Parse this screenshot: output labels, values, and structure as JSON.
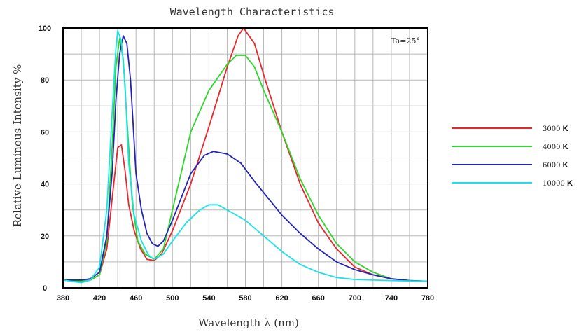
{
  "chart_data": {
    "type": "line",
    "title": "Wavelength Characteristics",
    "xlabel": "Wavelength  λ (nm)",
    "ylabel": "Relative Luminous Intensity %",
    "xlim": [
      380,
      780
    ],
    "ylim": [
      0,
      100
    ],
    "x_ticks": [
      380,
      420,
      460,
      500,
      540,
      580,
      620,
      660,
      700,
      740,
      780
    ],
    "y_ticks": [
      0,
      20,
      40,
      60,
      80,
      100
    ],
    "x_grid_step": 20,
    "y_grid_step": 10,
    "grid": true,
    "annotation": "Ta=25°",
    "legend_position": "right",
    "series": [
      {
        "name": "3000",
        "unit": "K",
        "color": "#e8262b",
        "points": [
          [
            380,
            3
          ],
          [
            400,
            2.5
          ],
          [
            410,
            3
          ],
          [
            420,
            5
          ],
          [
            428,
            15
          ],
          [
            435,
            38
          ],
          [
            440,
            54
          ],
          [
            444,
            55
          ],
          [
            448,
            45
          ],
          [
            452,
            32
          ],
          [
            458,
            22
          ],
          [
            465,
            15
          ],
          [
            472,
            11
          ],
          [
            480,
            10.5
          ],
          [
            488,
            13
          ],
          [
            500,
            22
          ],
          [
            520,
            40
          ],
          [
            540,
            62
          ],
          [
            560,
            85
          ],
          [
            572,
            97
          ],
          [
            578,
            100
          ],
          [
            590,
            94
          ],
          [
            600,
            82
          ],
          [
            620,
            60
          ],
          [
            640,
            40
          ],
          [
            660,
            25
          ],
          [
            680,
            15
          ],
          [
            700,
            8
          ],
          [
            720,
            5
          ],
          [
            740,
            3.5
          ],
          [
            760,
            2.8
          ],
          [
            780,
            2.5
          ]
        ]
      },
      {
        "name": "4000",
        "unit": "K",
        "color": "#2ed52a",
        "points": [
          [
            380,
            3
          ],
          [
            400,
            2.5
          ],
          [
            410,
            3
          ],
          [
            420,
            5
          ],
          [
            428,
            18
          ],
          [
            434,
            55
          ],
          [
            438,
            85
          ],
          [
            442,
            96
          ],
          [
            446,
            88
          ],
          [
            450,
            65
          ],
          [
            456,
            32
          ],
          [
            462,
            18
          ],
          [
            470,
            13
          ],
          [
            480,
            11
          ],
          [
            490,
            15
          ],
          [
            500,
            30
          ],
          [
            520,
            60
          ],
          [
            540,
            76
          ],
          [
            560,
            86
          ],
          [
            570,
            89.5
          ],
          [
            580,
            89.5
          ],
          [
            590,
            85
          ],
          [
            600,
            76
          ],
          [
            620,
            60
          ],
          [
            640,
            42
          ],
          [
            660,
            28
          ],
          [
            680,
            17
          ],
          [
            700,
            10
          ],
          [
            720,
            6
          ],
          [
            740,
            3.5
          ],
          [
            760,
            2.8
          ],
          [
            780,
            2.5
          ]
        ]
      },
      {
        "name": "6000",
        "unit": "K",
        "color": "#2424b4",
        "points": [
          [
            380,
            3
          ],
          [
            400,
            3
          ],
          [
            410,
            3.5
          ],
          [
            420,
            6
          ],
          [
            428,
            20
          ],
          [
            434,
            45
          ],
          [
            438,
            72
          ],
          [
            442,
            90
          ],
          [
            446,
            97
          ],
          [
            450,
            94
          ],
          [
            454,
            80
          ],
          [
            460,
            44
          ],
          [
            466,
            30
          ],
          [
            472,
            21
          ],
          [
            478,
            17
          ],
          [
            484,
            16
          ],
          [
            490,
            18
          ],
          [
            500,
            26
          ],
          [
            520,
            44
          ],
          [
            535,
            51
          ],
          [
            545,
            52.5
          ],
          [
            560,
            51.5
          ],
          [
            575,
            48
          ],
          [
            590,
            41
          ],
          [
            620,
            28
          ],
          [
            640,
            21
          ],
          [
            660,
            15
          ],
          [
            680,
            10
          ],
          [
            700,
            7
          ],
          [
            720,
            5
          ],
          [
            740,
            3.5
          ],
          [
            760,
            2.8
          ],
          [
            780,
            2.5
          ]
        ]
      },
      {
        "name": "10000",
        "unit": "K",
        "color": "#17e3ea",
        "points": [
          [
            380,
            3
          ],
          [
            400,
            2
          ],
          [
            410,
            3
          ],
          [
            420,
            8
          ],
          [
            428,
            30
          ],
          [
            434,
            68
          ],
          [
            438,
            92
          ],
          [
            440,
            99
          ],
          [
            444,
            95
          ],
          [
            448,
            78
          ],
          [
            452,
            48
          ],
          [
            458,
            28
          ],
          [
            466,
            18
          ],
          [
            474,
            12.5
          ],
          [
            480,
            11
          ],
          [
            490,
            13
          ],
          [
            500,
            18
          ],
          [
            515,
            25
          ],
          [
            530,
            30
          ],
          [
            540,
            32
          ],
          [
            550,
            32
          ],
          [
            565,
            29
          ],
          [
            580,
            26
          ],
          [
            600,
            20
          ],
          [
            620,
            14
          ],
          [
            640,
            9
          ],
          [
            660,
            6
          ],
          [
            680,
            4
          ],
          [
            700,
            3.2
          ],
          [
            740,
            2.8
          ],
          [
            780,
            2.5
          ]
        ]
      }
    ]
  }
}
